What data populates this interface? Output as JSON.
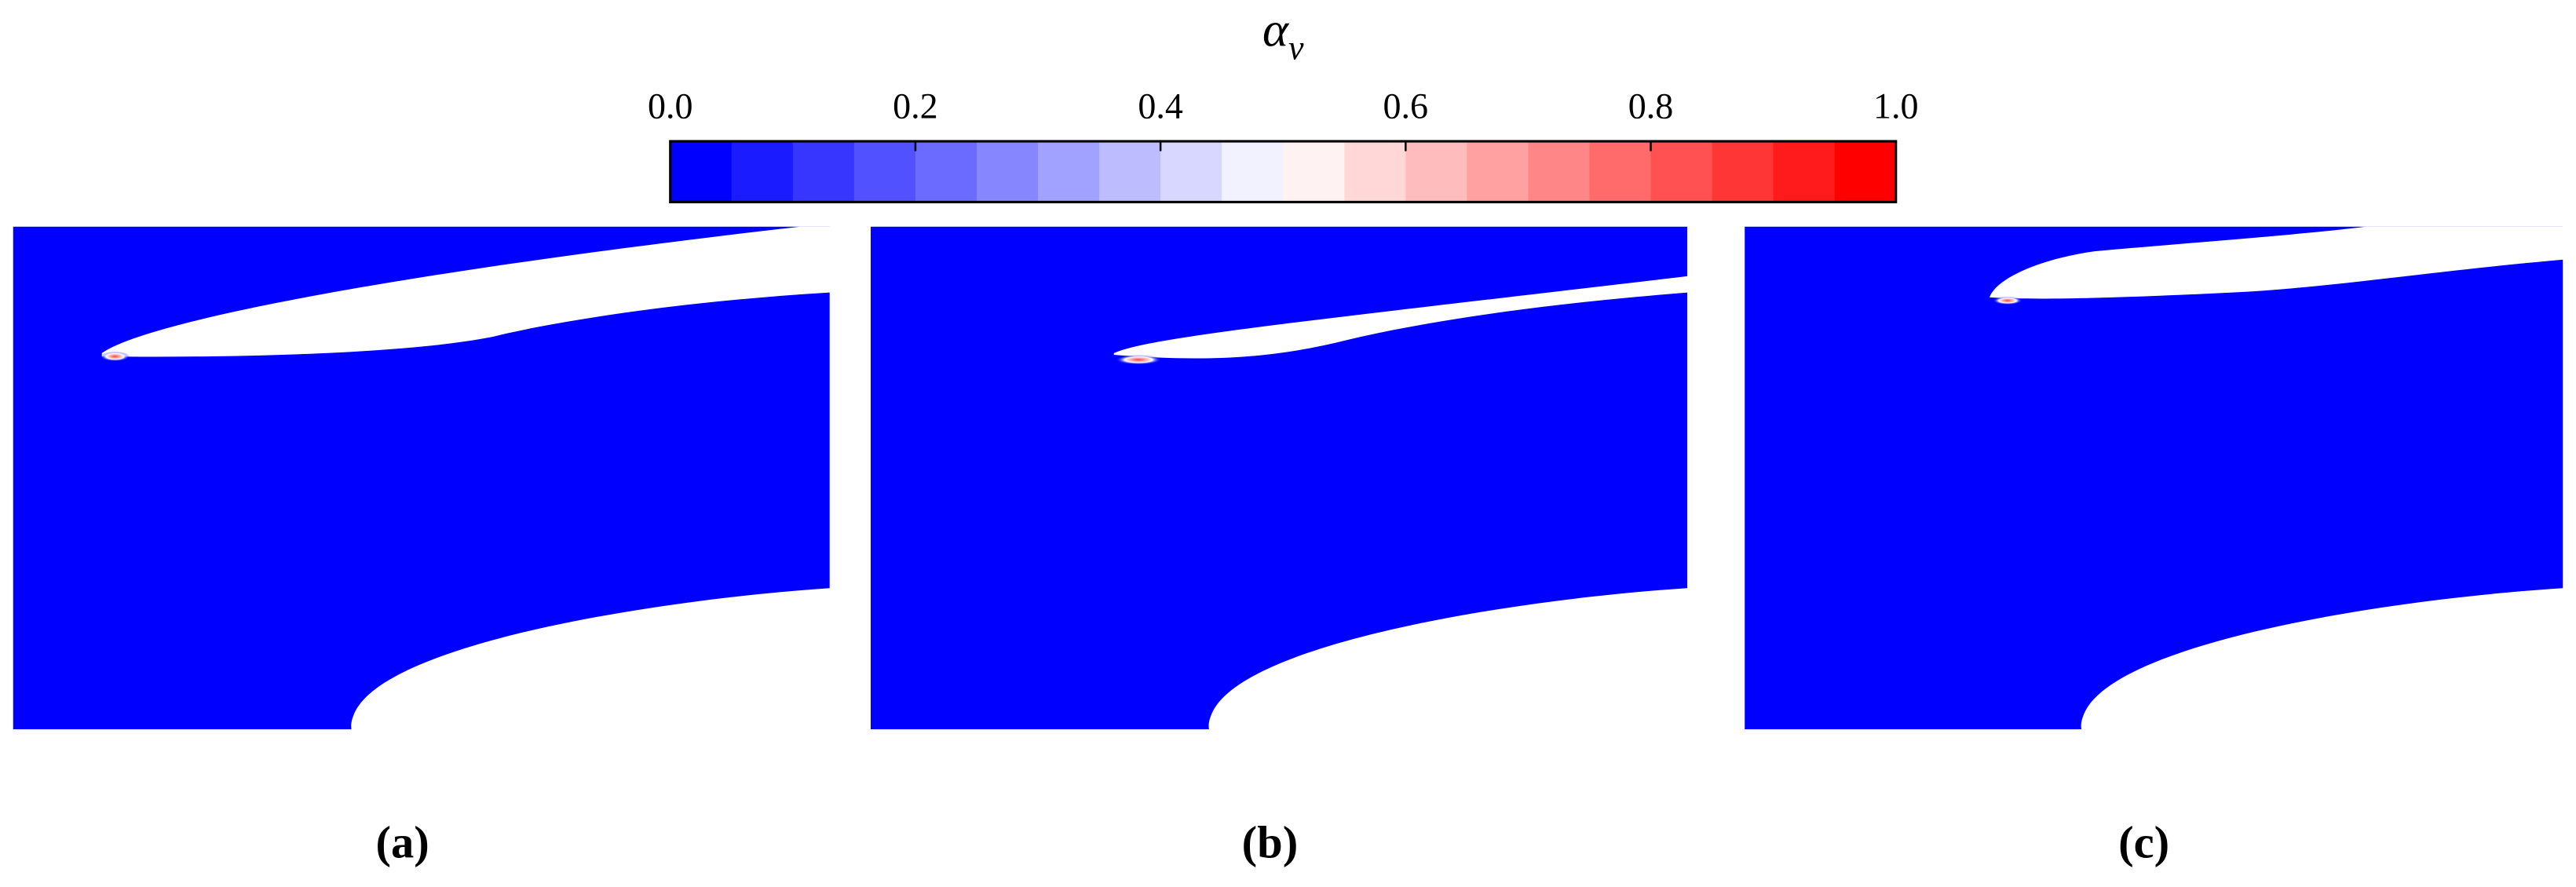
{
  "colorbar": {
    "label": {
      "symbol": "α",
      "subscript": "v"
    },
    "lim": [
      0,
      1
    ],
    "levels": 20,
    "ticks": [
      {
        "value": 0,
        "label": "0.0"
      },
      {
        "value": 0.2,
        "label": "0.2"
      },
      {
        "value": 0.4,
        "label": "0.4"
      },
      {
        "value": 0.6,
        "label": "0.6"
      },
      {
        "value": 0.8,
        "label": "0.8"
      },
      {
        "value": 1,
        "label": "1.0"
      }
    ]
  },
  "panels": [
    {
      "label": "(a)"
    },
    {
      "label": "(b)"
    },
    {
      "label": "(c)"
    }
  ]
}
